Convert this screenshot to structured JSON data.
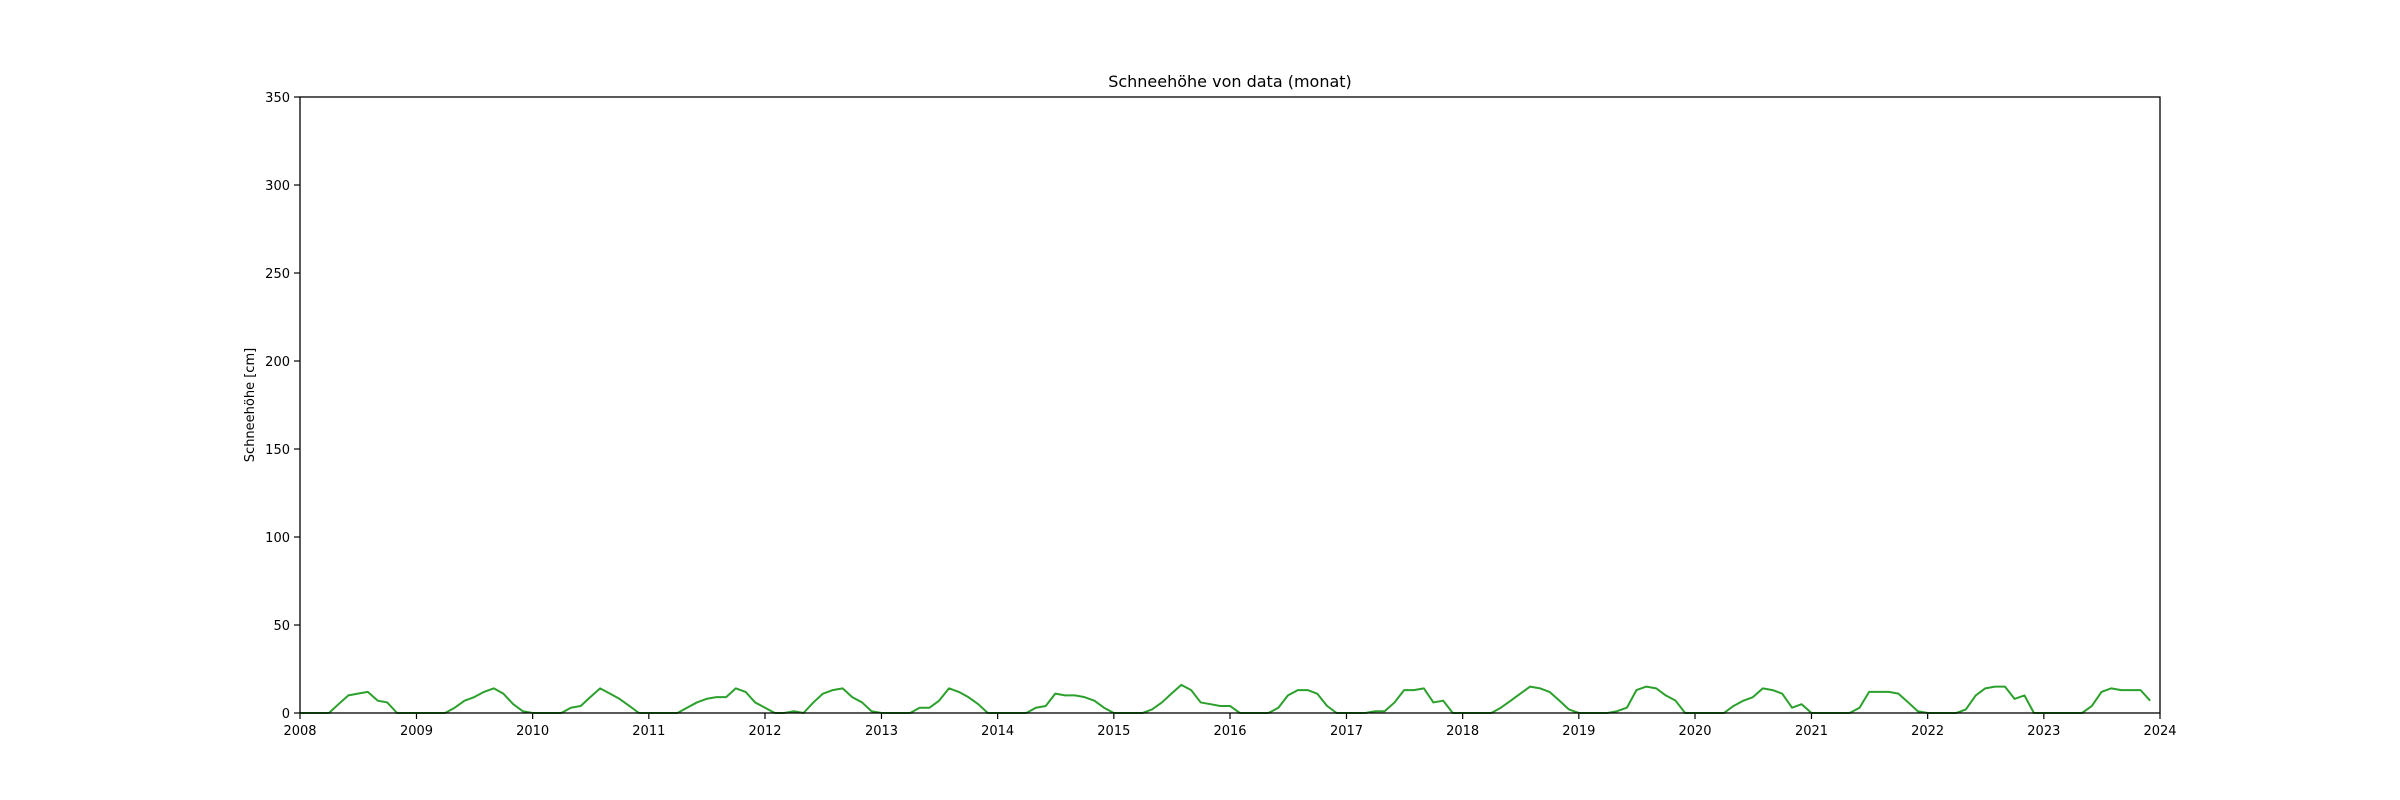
{
  "chart_data": {
    "type": "line",
    "title": "Schneehöhe von data (monat)",
    "xlabel": "",
    "ylabel": "Schneehöhe [cm]",
    "xlim": [
      "2008-01-01",
      "2024-01-01"
    ],
    "ylim": [
      0,
      350
    ],
    "x_ticks": [
      "2008",
      "2009",
      "2010",
      "2011",
      "2012",
      "2013",
      "2014",
      "2015",
      "2016",
      "2017",
      "2018",
      "2019",
      "2020",
      "2021",
      "2022",
      "2023",
      "2024"
    ],
    "y_ticks": [
      0,
      50,
      100,
      150,
      200,
      250,
      300,
      350
    ],
    "grid": false,
    "series": [
      {
        "color": "#2ca02c",
        "x": [
          "2008-01-01",
          "2008-02-01",
          "2008-03-01",
          "2008-04-01",
          "2008-05-01",
          "2008-06-01",
          "2008-07-01",
          "2008-08-01",
          "2008-09-01",
          "2008-10-01",
          "2008-11-01",
          "2008-12-01",
          "2009-01-01",
          "2009-02-01",
          "2009-03-01",
          "2009-04-01",
          "2009-05-01",
          "2009-06-01",
          "2009-07-01",
          "2009-08-01",
          "2009-09-01",
          "2009-10-01",
          "2009-11-01",
          "2009-12-01",
          "2010-01-01",
          "2010-02-01",
          "2010-03-01",
          "2010-04-01",
          "2010-05-01",
          "2010-06-01",
          "2010-07-01",
          "2010-08-01",
          "2010-09-01",
          "2010-10-01",
          "2010-11-01",
          "2010-12-01",
          "2011-01-01",
          "2011-02-01",
          "2011-03-01",
          "2011-04-01",
          "2011-05-01",
          "2011-06-01",
          "2011-07-01",
          "2011-08-01",
          "2011-09-01",
          "2011-10-01",
          "2011-11-01",
          "2011-12-01",
          "2012-01-01",
          "2012-02-01",
          "2012-03-01",
          "2012-04-01",
          "2012-05-01",
          "2012-06-01",
          "2012-07-01",
          "2012-08-01",
          "2012-09-01",
          "2012-10-01",
          "2012-11-01",
          "2012-12-01",
          "2013-01-01",
          "2013-02-01",
          "2013-03-01",
          "2013-04-01",
          "2013-05-01",
          "2013-06-01",
          "2013-07-01",
          "2013-08-01",
          "2013-09-01",
          "2013-10-01",
          "2013-11-01",
          "2013-12-01",
          "2014-01-01",
          "2014-02-01",
          "2014-03-01",
          "2014-04-01",
          "2014-05-01",
          "2014-06-01",
          "2014-07-01",
          "2014-08-01",
          "2014-09-01",
          "2014-10-01",
          "2014-11-01",
          "2014-12-01",
          "2015-01-01",
          "2015-02-01",
          "2015-03-01",
          "2015-04-01",
          "2015-05-01",
          "2015-06-01",
          "2015-07-01",
          "2015-08-01",
          "2015-09-01",
          "2015-10-01",
          "2015-11-01",
          "2015-12-01",
          "2016-01-01",
          "2016-02-01",
          "2016-03-01",
          "2016-04-01",
          "2016-05-01",
          "2016-06-01",
          "2016-07-01",
          "2016-08-01",
          "2016-09-01",
          "2016-10-01",
          "2016-11-01",
          "2016-12-01",
          "2017-01-01",
          "2017-02-01",
          "2017-03-01",
          "2017-04-01",
          "2017-05-01",
          "2017-06-01",
          "2017-07-01",
          "2017-08-01",
          "2017-09-01",
          "2017-10-01",
          "2017-11-01",
          "2017-12-01",
          "2018-01-01",
          "2018-02-01",
          "2018-03-01",
          "2018-04-01",
          "2018-05-01",
          "2018-06-01",
          "2018-07-01",
          "2018-08-01",
          "2018-09-01",
          "2018-10-01",
          "2018-11-01",
          "2018-12-01",
          "2019-01-01",
          "2019-02-01",
          "2019-03-01",
          "2019-04-01",
          "2019-05-01",
          "2019-06-01",
          "2019-07-01",
          "2019-08-01",
          "2019-09-01",
          "2019-10-01",
          "2019-11-01",
          "2019-12-01",
          "2020-01-01",
          "2020-02-01",
          "2020-03-01",
          "2020-04-01",
          "2020-05-01",
          "2020-06-01",
          "2020-07-01",
          "2020-08-01",
          "2020-09-01",
          "2020-10-01",
          "2020-11-01",
          "2020-12-01",
          "2021-01-01",
          "2021-02-01",
          "2021-03-01",
          "2021-04-01",
          "2021-05-01",
          "2021-06-01",
          "2021-07-01",
          "2021-08-01",
          "2021-09-01",
          "2021-10-01",
          "2021-11-01",
          "2021-12-01",
          "2022-01-01",
          "2022-02-01",
          "2022-03-01",
          "2022-04-01",
          "2022-05-01",
          "2022-06-01",
          "2022-07-01",
          "2022-08-01",
          "2022-09-01",
          "2022-10-01",
          "2022-11-01",
          "2022-12-01",
          "2023-01-01",
          "2023-02-01",
          "2023-03-01",
          "2023-04-01",
          "2023-05-01",
          "2023-06-01",
          "2023-07-01",
          "2023-08-01",
          "2023-09-01",
          "2023-10-01",
          "2023-11-01",
          "2023-12-01"
        ],
        "y": [
          0,
          0,
          0,
          0,
          5,
          10,
          11,
          12,
          7,
          6,
          0,
          0,
          0,
          0,
          0,
          0,
          3,
          7,
          9,
          12,
          14,
          11,
          5,
          1,
          0,
          0,
          0,
          0,
          3,
          4,
          9,
          14,
          11,
          8,
          4,
          0,
          0,
          0,
          0,
          0,
          3,
          6,
          8,
          9,
          9,
          14,
          12,
          6,
          3,
          0,
          0,
          1,
          0,
          6,
          11,
          13,
          14,
          9,
          6,
          1,
          0,
          0,
          0,
          0,
          3,
          3,
          7,
          14,
          12,
          9,
          5,
          0,
          0,
          0,
          0,
          0,
          3,
          4,
          11,
          10,
          10,
          9,
          7,
          3,
          0,
          0,
          0,
          0,
          2,
          6,
          11,
          16,
          13,
          6,
          5,
          4,
          4,
          0,
          0,
          0,
          0,
          3,
          10,
          13,
          13,
          11,
          4,
          0,
          0,
          0,
          0,
          1,
          1,
          6,
          13,
          13,
          14,
          6,
          7,
          0,
          0,
          0,
          0,
          0,
          3,
          7,
          11,
          15,
          14,
          12,
          7,
          2,
          0,
          0,
          0,
          0,
          1,
          3,
          13,
          15,
          14,
          10,
          7,
          0,
          0,
          0,
          0,
          0,
          4,
          7,
          9,
          14,
          13,
          11,
          3,
          5,
          0,
          0,
          0,
          0,
          0,
          3,
          12,
          12,
          12,
          11,
          6,
          1,
          0,
          0,
          0,
          0,
          2,
          10,
          14,
          15,
          15,
          8,
          10,
          0,
          0,
          0,
          0,
          0,
          0,
          4,
          12,
          14,
          13,
          13,
          13,
          7
        ]
      }
    ]
  }
}
